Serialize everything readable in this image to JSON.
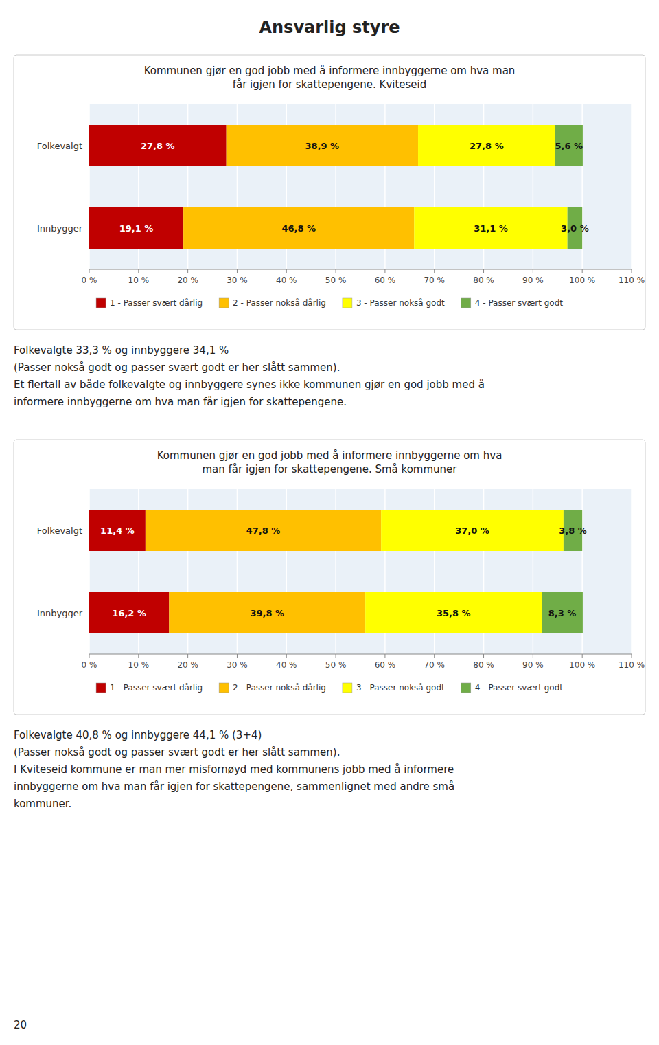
{
  "title": "Ansvarlig styre",
  "annotations": [
    "20"
  ],
  "chart_data": [
    {
      "type": "bar",
      "orientation": "horizontal",
      "stacked": true,
      "title": "Kommunen gjør en god jobb med å informere innbyggerne om hva man\nfår igjen for skattepengene. Kviteseid",
      "categories": [
        "Folkevalgt",
        "Innbygger"
      ],
      "series": [
        {
          "name": "1 - Passer svært dårlig",
          "color": "#C00000",
          "values": [
            27.8,
            19.1
          ],
          "value_labels": [
            "27,8 %",
            "19,1 %"
          ]
        },
        {
          "name": "2 - Passer nokså dårlig",
          "color": "#FFC000",
          "values": [
            38.9,
            46.8
          ],
          "value_labels": [
            "38,9 %",
            "46,8 %"
          ]
        },
        {
          "name": "3 - Passer nokså godt",
          "color": "#FFFF00",
          "values": [
            27.8,
            31.1
          ],
          "value_labels": [
            "27,8 %",
            "31,1 %"
          ]
        },
        {
          "name": "4 - Passer svært godt",
          "color": "#70AD47",
          "values": [
            5.6,
            3.0
          ],
          "value_labels": [
            "5,6 %",
            "3,0 %"
          ]
        }
      ],
      "xlim": [
        0,
        110
      ],
      "xticks": [
        {
          "value": 0,
          "label": "0 %"
        },
        {
          "value": 10,
          "label": "10 %"
        },
        {
          "value": 20,
          "label": "20 %"
        },
        {
          "value": 30,
          "label": "30 %"
        },
        {
          "value": 40,
          "label": "40 %"
        },
        {
          "value": 50,
          "label": "50 %"
        },
        {
          "value": 60,
          "label": "60 %"
        },
        {
          "value": 70,
          "label": "70 %"
        },
        {
          "value": 80,
          "label": "80 %"
        },
        {
          "value": 90,
          "label": "90 %"
        },
        {
          "value": 100,
          "label": "100 %"
        },
        {
          "value": 110,
          "label": "110 %"
        }
      ],
      "grid": true,
      "legend": "bottom",
      "data_labels": true,
      "annotations": [
        "Folkevalgte 33,3 % og innbyggere 34,1 %",
        "(Passer nokså godt og passer svært godt er her slått sammen).",
        "Et flertall av både folkevalgte og innbyggere synes ikke kommunen gjør en god jobb med å",
        "informere innbyggerne om hva man får igjen for skattepengene."
      ]
    },
    {
      "type": "bar",
      "orientation": "horizontal",
      "stacked": true,
      "title": "Kommunen gjør en god jobb med å informere innbyggerne om hva\nman får igjen for skattepengene. Små kommuner",
      "categories": [
        "Folkevalgt",
        "Innbygger"
      ],
      "series": [
        {
          "name": "1 - Passer svært dårlig",
          "color": "#C00000",
          "values": [
            11.4,
            16.2
          ],
          "value_labels": [
            "11,4 %",
            "16,2 %"
          ]
        },
        {
          "name": "2 - Passer nokså dårlig",
          "color": "#FFC000",
          "values": [
            47.8,
            39.8
          ],
          "value_labels": [
            "47,8 %",
            "39,8 %"
          ]
        },
        {
          "name": "3 - Passer nokså godt",
          "color": "#FFFF00",
          "values": [
            37.0,
            35.8
          ],
          "value_labels": [
            "37,0 %",
            "35,8 %"
          ]
        },
        {
          "name": "4 - Passer svært godt",
          "color": "#70AD47",
          "values": [
            3.8,
            8.3
          ],
          "value_labels": [
            "3,8 %",
            "8,3 %"
          ]
        }
      ],
      "xlim": [
        0,
        110
      ],
      "xticks": [
        {
          "value": 0,
          "label": "0 %"
        },
        {
          "value": 10,
          "label": "10 %"
        },
        {
          "value": 20,
          "label": "20 %"
        },
        {
          "value": 30,
          "label": "30 %"
        },
        {
          "value": 40,
          "label": "40 %"
        },
        {
          "value": 50,
          "label": "50 %"
        },
        {
          "value": 60,
          "label": "60 %"
        },
        {
          "value": 70,
          "label": "70 %"
        },
        {
          "value": 80,
          "label": "80 %"
        },
        {
          "value": 90,
          "label": "90 %"
        },
        {
          "value": 100,
          "label": "100 %"
        },
        {
          "value": 110,
          "label": "110 %"
        }
      ],
      "grid": true,
      "legend": "bottom",
      "data_labels": true,
      "annotations": [
        "Folkevalgte 40,8 % og innbyggere 44,1 % (3+4)",
        "(Passer nokså godt og passer svært godt er her slått sammen).",
        "I Kviteseid kommune er man mer misfornøyd med kommunens jobb med å informere",
        "innbyggerne om hva man får igjen for skattepengene, sammenlignet med andre små",
        "kommuner."
      ]
    }
  ]
}
